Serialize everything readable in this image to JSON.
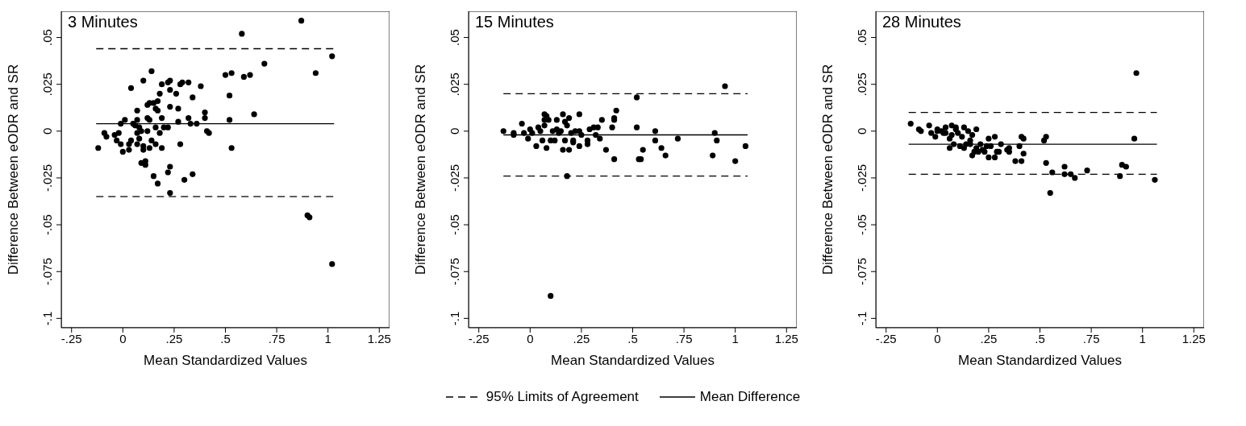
{
  "chart_data": [
    {
      "type": "scatter",
      "title": "3 Minutes",
      "xlabel": "Mean Standardized Values",
      "ylabel": "Difference Between eODR and SR",
      "xlim": [
        -0.3,
        1.3
      ],
      "ylim": [
        -0.105,
        0.064
      ],
      "xticks": [
        {
          "value": -0.25,
          "label": "-.25"
        },
        {
          "value": 0,
          "label": "0"
        },
        {
          "value": 0.25,
          "label": ".25"
        },
        {
          "value": 0.5,
          "label": ".5"
        },
        {
          "value": 0.75,
          "label": ".75"
        },
        {
          "value": 1,
          "label": "1"
        },
        {
          "value": 1.25,
          "label": "1.25"
        }
      ],
      "yticks": [
        {
          "value": -0.1,
          "label": "-.1"
        },
        {
          "value": -0.075,
          "label": "-.075"
        },
        {
          "value": -0.05,
          "label": "-.05"
        },
        {
          "value": -0.025,
          "label": "-.025"
        },
        {
          "value": 0,
          "label": "0"
        },
        {
          "value": 0.025,
          "label": ".025"
        },
        {
          "value": 0.05,
          "label": ".05"
        }
      ],
      "grid": false,
      "series": [
        {
          "type": "scatter",
          "color": "#000000",
          "marker": "circle",
          "x": [
            -0.12,
            -0.09,
            -0.08,
            -0.04,
            -0.03,
            -0.02,
            -0.01,
            -0.01,
            0.01,
            0.0,
            0.03,
            0.03,
            0.04,
            0.04,
            0.05,
            0.06,
            0.07,
            0.07,
            0.07,
            0.08,
            0.07,
            0.08,
            0.09,
            0.09,
            0.1,
            0.1,
            0.1,
            0.11,
            0.11,
            0.12,
            0.12,
            0.12,
            0.13,
            0.13,
            0.13,
            0.14,
            0.14,
            0.15,
            0.15,
            0.16,
            0.16,
            0.16,
            0.17,
            0.17,
            0.17,
            0.18,
            0.18,
            0.19,
            0.19,
            0.19,
            0.2,
            0.22,
            0.22,
            0.22,
            0.23,
            0.23,
            0.23,
            0.23,
            0.23,
            0.26,
            0.27,
            0.27,
            0.28,
            0.28,
            0.29,
            0.3,
            0.32,
            0.32,
            0.33,
            0.34,
            0.34,
            0.36,
            0.38,
            0.4,
            0.4,
            0.41,
            0.42,
            0.5,
            0.52,
            0.52,
            0.53,
            0.53,
            0.58,
            0.59,
            0.62,
            0.64,
            0.69,
            0.87,
            0.9,
            0.91,
            0.94,
            1.02,
            1.02
          ],
          "values": [
            -0.009,
            -0.001,
            -0.003,
            -0.002,
            -0.005,
            -0.001,
            -0.007,
            0.004,
            0.006,
            -0.011,
            -0.007,
            -0.01,
            0.023,
            -0.005,
            0.004,
            0.003,
            0.011,
            0.006,
            -0.007,
            0.002,
            -0.001,
            -0.004,
            -0.017,
            0.0,
            0.027,
            -0.008,
            -0.01,
            -0.018,
            -0.016,
            0.014,
            0.007,
            0.0,
            0.006,
            -0.009,
            0.015,
            0.032,
            -0.005,
            0.015,
            -0.024,
            0.012,
            0.002,
            -0.007,
            0.016,
            0.011,
            -0.028,
            0.02,
            -0.001,
            0.007,
            0.025,
            -0.009,
            0.002,
            0.002,
            0.026,
            -0.022,
            0.022,
            -0.019,
            0.027,
            0.013,
            -0.033,
            0.02,
            0.005,
            0.012,
            0.025,
            -0.007,
            0.026,
            -0.026,
            0.007,
            0.026,
            0.004,
            0.018,
            -0.023,
            0.004,
            0.024,
            0.007,
            0.01,
            0.0,
            -0.001,
            0.03,
            0.006,
            0.019,
            -0.009,
            0.031,
            0.052,
            0.029,
            0.03,
            0.009,
            0.036,
            0.059,
            -0.045,
            -0.046,
            0.031,
            0.04,
            -0.071
          ]
        },
        {
          "type": "line",
          "color": "#000000",
          "line_style": "dashed",
          "x": [
            -0.13,
            1.03
          ],
          "values": [
            0.044,
            0.044
          ]
        },
        {
          "type": "line",
          "color": "#000000",
          "line_style": "dashed",
          "x": [
            -0.13,
            1.03
          ],
          "values": [
            -0.035,
            -0.035
          ]
        },
        {
          "type": "line",
          "color": "#000000",
          "line_style": "solid",
          "x": [
            -0.13,
            1.03
          ],
          "values": [
            0.004,
            0.004
          ]
        }
      ]
    },
    {
      "type": "scatter",
      "title": "15 Minutes",
      "xlabel": "Mean Standardized Values",
      "ylabel": "Difference Between eODR and SR",
      "xlim": [
        -0.3,
        1.3
      ],
      "ylim": [
        -0.105,
        0.064
      ],
      "xticks": [
        {
          "value": -0.25,
          "label": "-.25"
        },
        {
          "value": 0,
          "label": "0"
        },
        {
          "value": 0.25,
          "label": ".25"
        },
        {
          "value": 0.5,
          "label": ".5"
        },
        {
          "value": 0.75,
          "label": ".75"
        },
        {
          "value": 1,
          "label": "1"
        },
        {
          "value": 1.25,
          "label": "1.25"
        }
      ],
      "yticks": [
        {
          "value": -0.1,
          "label": "-.1"
        },
        {
          "value": -0.075,
          "label": "-.075"
        },
        {
          "value": -0.05,
          "label": "-.05"
        },
        {
          "value": -0.025,
          "label": "-.025"
        },
        {
          "value": 0,
          "label": "0"
        },
        {
          "value": 0.025,
          "label": ".025"
        },
        {
          "value": 0.05,
          "label": ".05"
        }
      ],
      "grid": false,
      "legend": "bottom",
      "series": [
        {
          "type": "scatter",
          "color": "#000000",
          "marker": "circle",
          "x": [
            -0.13,
            -0.08,
            -0.08,
            -0.04,
            -0.03,
            -0.01,
            0.0,
            0.01,
            0.03,
            0.04,
            0.05,
            0.06,
            0.07,
            0.07,
            0.07,
            0.08,
            0.08,
            0.09,
            0.1,
            0.1,
            0.11,
            0.12,
            0.13,
            0.13,
            0.14,
            0.15,
            0.16,
            0.16,
            0.17,
            0.17,
            0.18,
            0.18,
            0.19,
            0.19,
            0.2,
            0.21,
            0.21,
            0.22,
            0.24,
            0.24,
            0.24,
            0.25,
            0.28,
            0.28,
            0.29,
            0.31,
            0.32,
            0.33,
            0.34,
            0.35,
            0.37,
            0.4,
            0.41,
            0.41,
            0.41,
            0.42,
            0.52,
            0.52,
            0.53,
            0.54,
            0.55,
            0.61,
            0.61,
            0.64,
            0.66,
            0.72,
            0.89,
            0.9,
            0.91,
            0.95,
            1.0,
            1.05
          ],
          "values": [
            0.0,
            -0.001,
            -0.002,
            0.004,
            -0.001,
            -0.004,
            0.001,
            -0.001,
            -0.008,
            0.002,
            0.0,
            -0.005,
            0.009,
            0.003,
            0.006,
            -0.009,
            0.008,
            0.006,
            -0.005,
            -0.088,
            0.0,
            -0.005,
            0.006,
            0.001,
            -0.001,
            0.0,
            0.009,
            -0.01,
            0.005,
            -0.005,
            0.003,
            -0.024,
            0.007,
            -0.01,
            -0.001,
            -0.005,
            -0.006,
            0.0,
            0.0,
            -0.008,
            0.009,
            -0.002,
            -0.007,
            -0.005,
            0.001,
            0.002,
            -0.002,
            0.002,
            -0.004,
            0.006,
            -0.01,
            0.002,
            0.006,
            0.007,
            -0.015,
            0.011,
            0.018,
            0.002,
            -0.015,
            -0.015,
            -0.01,
            0.0,
            -0.005,
            -0.009,
            -0.013,
            -0.004,
            -0.013,
            -0.001,
            -0.005,
            0.024,
            -0.016,
            -0.008
          ]
        },
        {
          "type": "line",
          "name": "95% Limits of Agreement",
          "color": "#000000",
          "line_style": "dashed",
          "x": [
            -0.13,
            1.06
          ],
          "values": [
            0.02,
            0.02
          ]
        },
        {
          "type": "line",
          "color": "#000000",
          "line_style": "dashed",
          "x": [
            -0.13,
            1.06
          ],
          "values": [
            -0.024,
            -0.024
          ]
        },
        {
          "type": "line",
          "name": "Mean Difference",
          "color": "#000000",
          "line_style": "solid",
          "x": [
            -0.13,
            1.06
          ],
          "values": [
            -0.002,
            -0.002
          ]
        }
      ]
    },
    {
      "type": "scatter",
      "title": "28 Minutes",
      "xlabel": "Mean Standardized Values",
      "ylabel": "Difference Between eODR and SR",
      "xlim": [
        -0.3,
        1.3
      ],
      "ylim": [
        -0.105,
        0.064
      ],
      "xticks": [
        {
          "value": -0.25,
          "label": "-.25"
        },
        {
          "value": 0,
          "label": "0"
        },
        {
          "value": 0.25,
          "label": ".25"
        },
        {
          "value": 0.5,
          "label": ".5"
        },
        {
          "value": 0.75,
          "label": ".75"
        },
        {
          "value": 1,
          "label": "1"
        },
        {
          "value": 1.25,
          "label": "1.25"
        }
      ],
      "yticks": [
        {
          "value": -0.1,
          "label": "-.1"
        },
        {
          "value": -0.075,
          "label": "-.075"
        },
        {
          "value": -0.05,
          "label": "-.05"
        },
        {
          "value": -0.025,
          "label": "-.025"
        },
        {
          "value": 0,
          "label": "0"
        },
        {
          "value": 0.025,
          "label": ".025"
        },
        {
          "value": 0.05,
          "label": ".05"
        }
      ],
      "grid": false,
      "series": [
        {
          "type": "scatter",
          "color": "#000000",
          "marker": "circle",
          "x": [
            -0.13,
            -0.09,
            -0.08,
            -0.04,
            -0.03,
            -0.01,
            0.0,
            0.0,
            0.02,
            0.03,
            0.04,
            0.04,
            0.06,
            0.06,
            0.07,
            0.07,
            0.08,
            0.09,
            0.09,
            0.1,
            0.11,
            0.12,
            0.13,
            0.13,
            0.14,
            0.15,
            0.16,
            0.16,
            0.17,
            0.17,
            0.18,
            0.19,
            0.19,
            0.2,
            0.21,
            0.22,
            0.23,
            0.24,
            0.25,
            0.25,
            0.26,
            0.28,
            0.28,
            0.29,
            0.3,
            0.31,
            0.34,
            0.35,
            0.35,
            0.38,
            0.4,
            0.41,
            0.41,
            0.42,
            0.42,
            0.52,
            0.53,
            0.53,
            0.55,
            0.56,
            0.62,
            0.62,
            0.65,
            0.67,
            0.73,
            0.89,
            0.9,
            0.92,
            0.96,
            0.97,
            1.06
          ],
          "values": [
            0.004,
            0.001,
            0.0,
            0.003,
            -0.001,
            -0.003,
            0.001,
            0.0,
            0.0,
            -0.001,
            0.002,
            -0.001,
            -0.004,
            -0.009,
            0.003,
            -0.002,
            -0.007,
            0.002,
            0.001,
            -0.001,
            -0.008,
            -0.003,
            0.002,
            -0.009,
            -0.007,
            0.0,
            -0.005,
            -0.007,
            -0.013,
            -0.002,
            -0.011,
            0.001,
            -0.009,
            -0.011,
            -0.007,
            -0.01,
            -0.011,
            -0.008,
            -0.014,
            -0.004,
            -0.008,
            -0.003,
            -0.014,
            -0.011,
            -0.011,
            -0.007,
            -0.01,
            -0.009,
            -0.011,
            -0.016,
            -0.008,
            -0.003,
            -0.016,
            -0.012,
            -0.004,
            -0.005,
            -0.017,
            -0.003,
            -0.033,
            -0.022,
            -0.019,
            -0.023,
            -0.023,
            -0.025,
            -0.021,
            -0.024,
            -0.018,
            -0.019,
            -0.004,
            0.031,
            -0.026
          ]
        },
        {
          "type": "line",
          "color": "#000000",
          "line_style": "dashed",
          "x": [
            -0.14,
            1.07
          ],
          "values": [
            0.01,
            0.01
          ]
        },
        {
          "type": "line",
          "color": "#000000",
          "line_style": "dashed",
          "x": [
            -0.14,
            1.07
          ],
          "values": [
            -0.023,
            -0.023
          ]
        },
        {
          "type": "line",
          "color": "#000000",
          "line_style": "solid",
          "x": [
            -0.14,
            1.07
          ],
          "values": [
            -0.007,
            -0.007
          ]
        }
      ]
    }
  ]
}
